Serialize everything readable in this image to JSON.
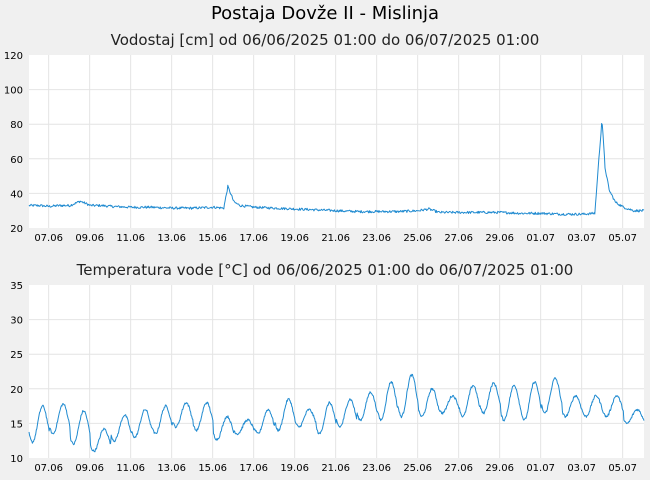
{
  "page_title": "Postaja Dovže II - Mislinja",
  "colors": {
    "line": "#1f8ad0",
    "background": "#f0f0f0",
    "plot_bg": "#ffffff",
    "grid": "#e4e4e4"
  },
  "chart_data": [
    {
      "type": "line",
      "title": "Vodostaj [cm] od 06/06/2025 01:00 do 06/07/2025 01:00",
      "xlabel": "",
      "ylabel": "",
      "ylim": [
        20,
        120
      ],
      "yticks": [
        "120",
        "100",
        "80",
        "60",
        "40",
        "20"
      ],
      "xticks": [
        "07.06",
        "09.06",
        "11.06",
        "13.06",
        "15.06",
        "17.06",
        "19.06",
        "21.06",
        "23.06",
        "25.06",
        "27.06",
        "29.06",
        "01.07",
        "03.07",
        "05.07"
      ],
      "grid": true,
      "series": [
        {
          "x_days": [
            0.0,
            0.5,
            1.0,
            1.5,
            2.0,
            2.5,
            3.0,
            3.5,
            4.0,
            5.0,
            6.0,
            7.0,
            8.0,
            9.0,
            9.5,
            9.7,
            9.8,
            10.0,
            10.3,
            11.0,
            12.0,
            13.0,
            14.0,
            15.0,
            16.0,
            17.0,
            18.0,
            19.0,
            19.5,
            20.0,
            21.0,
            22.0,
            23.0,
            24.0,
            25.0,
            26.0,
            27.0,
            27.6,
            27.8,
            27.95,
            28.1,
            28.3,
            28.6,
            29.0,
            29.5,
            30.0
          ],
          "values": [
            33,
            33,
            32.5,
            33,
            33,
            35.5,
            33,
            33,
            32.5,
            32,
            32,
            31.5,
            31.5,
            32,
            31.5,
            44,
            41,
            35,
            33,
            32,
            31.5,
            31,
            30.5,
            30,
            29.5,
            29.5,
            29.5,
            30,
            31,
            29,
            29,
            29,
            29,
            28.5,
            28.5,
            28,
            28,
            28.5,
            60,
            83,
            55,
            42,
            35,
            32,
            30,
            30
          ]
        }
      ]
    },
    {
      "type": "line",
      "title": "Temperatura vode [°C] od 06/06/2025 01:00 do 06/07/2025 01:00",
      "xlabel": "",
      "ylabel": "",
      "ylim": [
        10,
        35
      ],
      "yticks": [
        "35",
        "30",
        "25",
        "20",
        "15",
        "10"
      ],
      "xticks": [
        "07.06",
        "09.06",
        "11.06",
        "13.06",
        "15.06",
        "17.06",
        "19.06",
        "21.06",
        "23.06",
        "25.06",
        "27.06",
        "29.06",
        "01.07",
        "03.07",
        "05.07"
      ],
      "grid": true,
      "daily_min": [
        12.3,
        13.5,
        12.0,
        11.0,
        12.5,
        13.0,
        13.5,
        14.5,
        14.0,
        12.7,
        13.5,
        13.5,
        14.0,
        14.5,
        13.5,
        14.5,
        15.5,
        15.5,
        16.0,
        16.0,
        16.5,
        16.0,
        16.5,
        15.5,
        15.5,
        16.5,
        16.0,
        16.0,
        16.0,
        15.0
      ],
      "daily_max": [
        17.5,
        17.8,
        16.8,
        14.2,
        16.2,
        17.0,
        17.5,
        18.0,
        18.0,
        16.0,
        15.5,
        17.0,
        18.5,
        17.0,
        18.0,
        18.5,
        19.5,
        21.0,
        22.0,
        20.0,
        19.0,
        20.5,
        20.8,
        20.5,
        21.0,
        21.5,
        19.0,
        19.0,
        19.0,
        17.0
      ]
    }
  ]
}
